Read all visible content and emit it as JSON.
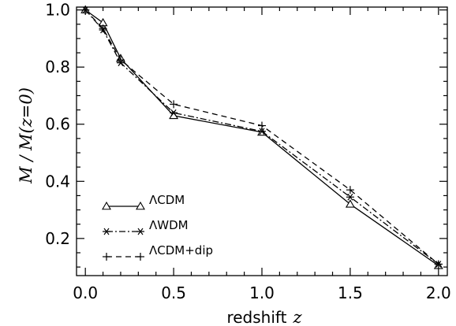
{
  "chart_data": {
    "type": "line",
    "x": [
      0.0,
      0.1,
      0.2,
      0.5,
      1.0,
      1.5,
      2.0
    ],
    "series": [
      {
        "name": "ΛCDM",
        "values": [
          1.0,
          0.955,
          0.83,
          0.63,
          0.572,
          0.32,
          0.105
        ],
        "line": "solid",
        "marker": "triangle"
      },
      {
        "name": "ΛWDM",
        "values": [
          1.0,
          0.93,
          0.815,
          0.64,
          0.575,
          0.345,
          0.11
        ],
        "line": "dash-dot",
        "marker": "asterisk"
      },
      {
        "name": "ΛCDM+dip",
        "values": [
          1.0,
          0.935,
          0.825,
          0.67,
          0.595,
          0.37,
          0.11
        ],
        "line": "dashed",
        "marker": "plus"
      }
    ],
    "xlabel": {
      "text": "redshift",
      "var": "z"
    },
    "ylabel": {
      "text": "M / M(z=0)"
    },
    "xlim": [
      -0.05,
      2.05
    ],
    "ylim": [
      0.07,
      1.01
    ],
    "xticks": [
      "0.0",
      "0.5",
      "1.0",
      "1.5",
      "2.0"
    ],
    "yticks": [
      "0.2",
      "0.4",
      "0.6",
      "0.8",
      "1.0"
    ],
    "grid": false,
    "legend_position": "bottom-left"
  }
}
